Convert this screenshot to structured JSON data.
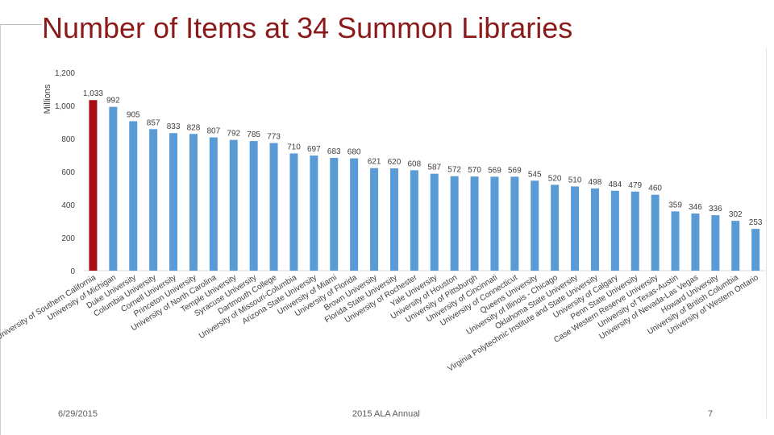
{
  "title": "Number of Items at 34 Summon Libraries",
  "footer": {
    "date": "6/29/2015",
    "event": "2015 ALA Annual",
    "page": "7"
  },
  "chart_data": {
    "type": "bar",
    "ylabel": "Millions",
    "ylim": [
      0,
      1200
    ],
    "yticks": [
      0,
      200,
      400,
      600,
      800,
      1000,
      1200
    ],
    "ytick_labels": [
      "0",
      "200",
      "400",
      "600",
      "800",
      "1,000",
      "1,200"
    ],
    "grid": false,
    "legend": "none",
    "categories": [
      "University of Southern California",
      "University of Michigan",
      "Duke University",
      "Columbia University",
      "Cornell University",
      "Princeton University",
      "University of North Carolina",
      "Temple University",
      "Syracuse University",
      "Dartmouth College",
      "University of Missouri-Columbia",
      "Arizona State University",
      "University of Miami",
      "University of Florida",
      "Brown University",
      "Florida State University",
      "University of Rochester",
      "Yale University",
      "University of Houston",
      "University of Pittsburgh",
      "University of Cincinnati",
      "University of Connecticut",
      "Queens University",
      "University of Illinois - Chicago",
      "Oklahoma State University",
      "Virginia Polytechnic Institute and State University",
      "University of Calgary",
      "Penn State University",
      "Case Western Reserve University",
      "University of Texas-Austin",
      "University of Nevada-Las Vegas",
      "Howard University",
      "University of British Columbia",
      "University of Western Ontario"
    ],
    "values": [
      1033,
      992,
      905,
      857,
      833,
      828,
      807,
      792,
      785,
      773,
      710,
      697,
      683,
      680,
      621,
      620,
      608,
      587,
      572,
      570,
      569,
      569,
      545,
      520,
      510,
      498,
      484,
      479,
      460,
      359,
      346,
      336,
      302,
      253
    ],
    "data_labels": [
      "1,033",
      "992",
      "905",
      "857",
      "833",
      "828",
      "807",
      "792",
      "785",
      "773",
      "710",
      "697",
      "683",
      "680",
      "621",
      "620",
      "608",
      "587",
      "572",
      "570",
      "569",
      "569",
      "545",
      "520",
      "510",
      "498",
      "484",
      "479",
      "460",
      "359",
      "346",
      "336",
      "302",
      "253"
    ],
    "colors": {
      "highlight": "#a50f15",
      "default": "#5b9bd5",
      "axis": "#d9d9d9",
      "text": "#404040"
    },
    "highlight_index": 0
  }
}
